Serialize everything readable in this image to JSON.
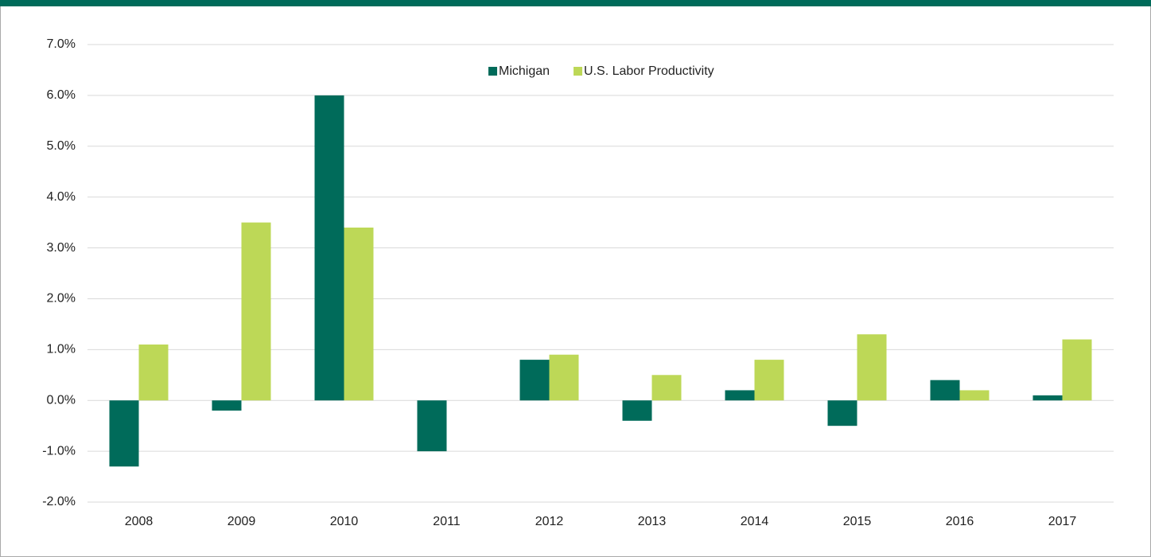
{
  "chart_data": {
    "type": "bar",
    "categories": [
      "2008",
      "2009",
      "2010",
      "2011",
      "2012",
      "2013",
      "2014",
      "2015",
      "2016",
      "2017"
    ],
    "series": [
      {
        "name": "Michigan",
        "color": "#006b5a",
        "values": [
          -1.3,
          -0.2,
          6.0,
          -1.0,
          0.8,
          -0.4,
          0.2,
          -0.5,
          0.4,
          0.1
        ]
      },
      {
        "name": "U.S. Labor Productivity",
        "color": "#bdd857",
        "values": [
          1.1,
          3.5,
          3.4,
          0,
          0.9,
          0.5,
          0.8,
          1.3,
          0.2,
          1.2
        ]
      }
    ],
    "ylim": [
      -2,
      7
    ],
    "yticks": [
      {
        "value": -2,
        "label": "-2.0%"
      },
      {
        "value": -1,
        "label": "-1.0%"
      },
      {
        "value": 0,
        "label": "0.0%"
      },
      {
        "value": 1,
        "label": "1.0%"
      },
      {
        "value": 2,
        "label": "2.0%"
      },
      {
        "value": 3,
        "label": "3.0%"
      },
      {
        "value": 4,
        "label": "4.0%"
      },
      {
        "value": 5,
        "label": "5.0%"
      },
      {
        "value": 6,
        "label": "6.0%"
      },
      {
        "value": 7,
        "label": "7.0%"
      }
    ],
    "grid": true,
    "legend": "top"
  }
}
